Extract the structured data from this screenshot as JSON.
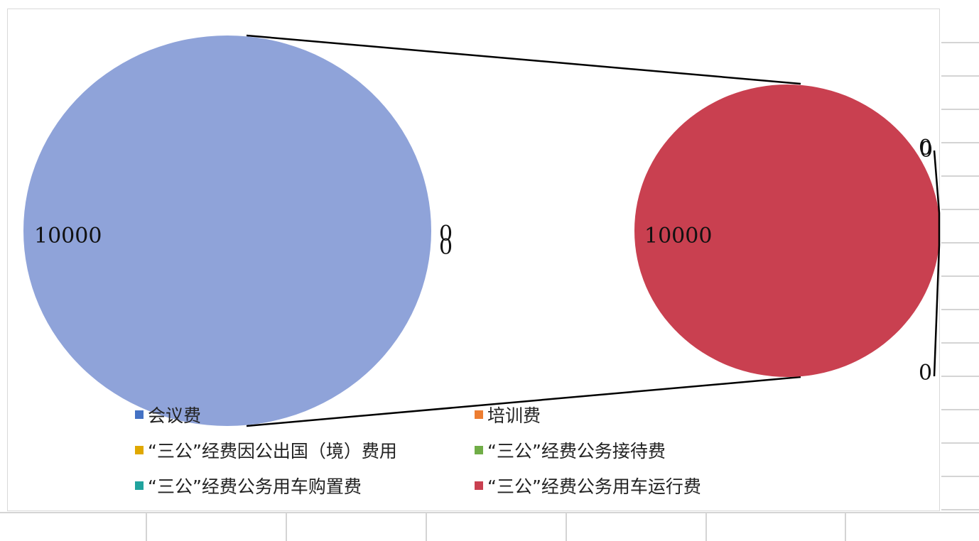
{
  "chart_data": {
    "type": "pie",
    "subtype": "pie-of-pie",
    "title": "",
    "categories": [
      "会议费",
      "培训费",
      "“三公”经费因公出国（境）费用",
      "“三公”经费公务接待费",
      "“三公”经费公务用车购置费",
      "“三公”经费公务用车运行费"
    ],
    "values": [
      10000,
      0,
      0,
      0,
      0,
      10000
    ],
    "colors": [
      "#4472c4",
      "#ed7d31",
      "#e0a800",
      "#70ad47",
      "#20a39e",
      "#c94050"
    ],
    "primary_pie": {
      "slices": [
        {
          "label": "10000",
          "value": 10000,
          "color": "#8fa3d9"
        },
        {
          "label": "0",
          "value": 0
        },
        {
          "label": "0",
          "value": 0
        }
      ]
    },
    "secondary_pie": {
      "slices": [
        {
          "label": "10000",
          "value": 10000,
          "color": "#c94050"
        },
        {
          "label": "0",
          "value": 0
        },
        {
          "label": "0",
          "value": 0
        },
        {
          "label": "0",
          "value": 0
        }
      ]
    },
    "legend": {
      "placement": "bottom",
      "items": [
        {
          "label": "会议费",
          "color": "#4472c4"
        },
        {
          "label": "培训费",
          "color": "#ed7d31"
        },
        {
          "label": "“三公”经费因公出国（境）费用",
          "color": "#e0a800"
        },
        {
          "label": "“三公”经费公务接待费",
          "color": "#70ad47"
        },
        {
          "label": "“三公”经费公务用车购置费",
          "color": "#20a39e"
        },
        {
          "label": "“三公”经费公务用车运行费",
          "color": "#c94050"
        }
      ]
    }
  }
}
